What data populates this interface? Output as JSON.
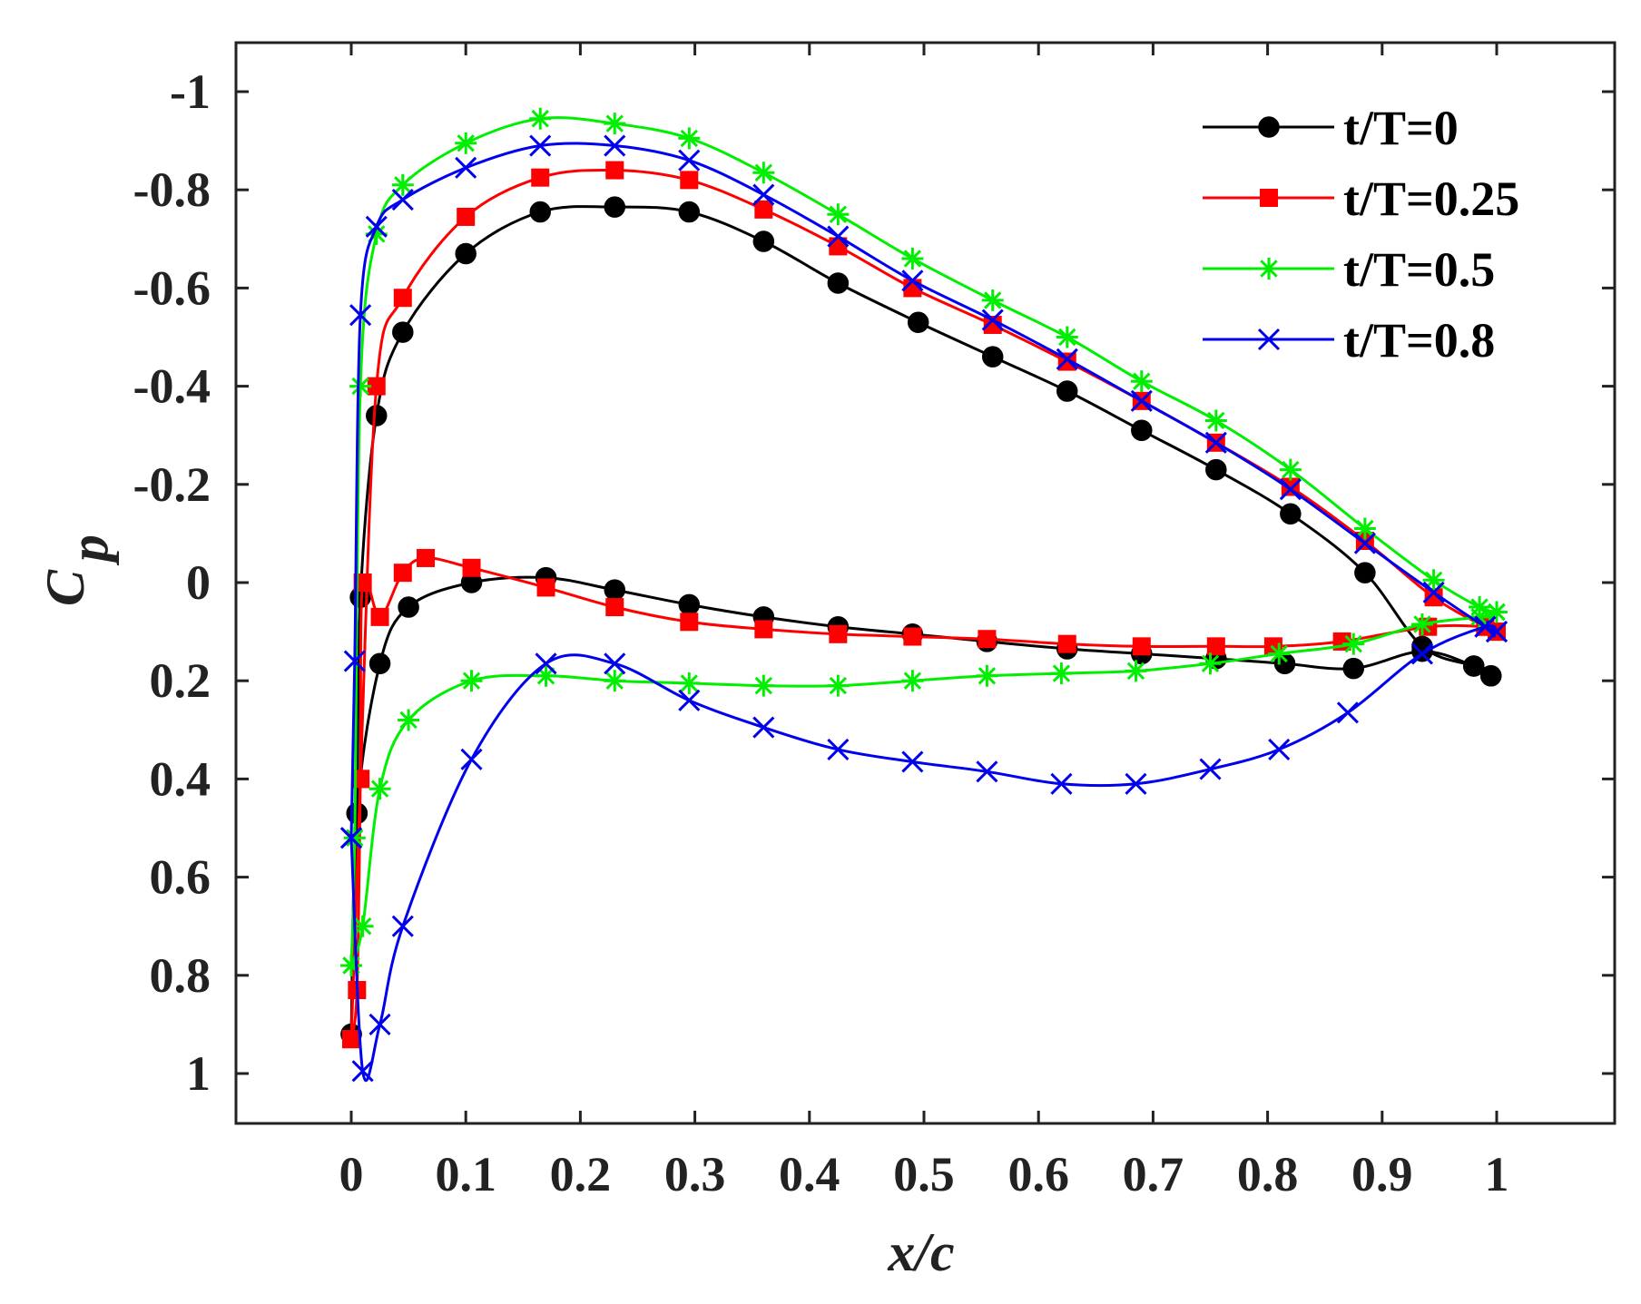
{
  "chart_data": {
    "type": "line",
    "title": "",
    "xlabel": "x/c",
    "ylabel_main": "C",
    "ylabel_sub": "p",
    "xlim": [
      -0.1,
      1.1
    ],
    "ylim": [
      -1.1,
      1.1
    ],
    "y_reversed": true,
    "grid": false,
    "legend_position": "top-right",
    "x_ticks": [
      0,
      0.1,
      0.2,
      0.3,
      0.4,
      0.5,
      0.6,
      0.7,
      0.8,
      0.9,
      1
    ],
    "x_tick_labels": [
      "0",
      "0.1",
      "0.2",
      "0.3",
      "0.4",
      "0.5",
      "0.6",
      "0.7",
      "0.8",
      "0.9",
      "1"
    ],
    "y_ticks": [
      -1,
      -0.8,
      -0.6,
      -0.4,
      -0.2,
      0,
      0.2,
      0.4,
      0.6,
      0.8,
      1
    ],
    "y_tick_labels": [
      "-1",
      "-0.8",
      "-0.6",
      "-0.4",
      "-0.2",
      "0",
      "0.2",
      "0.4",
      "0.6",
      "0.8",
      "1"
    ],
    "series": [
      {
        "name": "t/T=0",
        "label": "t/T=0",
        "color": "#000000",
        "marker": "circle",
        "upper": [
          [
            0.0,
            0.92
          ],
          [
            0.005,
            0.47
          ],
          [
            0.008,
            0.03
          ],
          [
            0.022,
            -0.34
          ],
          [
            0.045,
            -0.51
          ],
          [
            0.1,
            -0.67
          ],
          [
            0.165,
            -0.755
          ],
          [
            0.23,
            -0.765
          ],
          [
            0.295,
            -0.755
          ],
          [
            0.36,
            -0.695
          ],
          [
            0.425,
            -0.61
          ],
          [
            0.495,
            -0.53
          ],
          [
            0.56,
            -0.46
          ],
          [
            0.625,
            -0.39
          ],
          [
            0.69,
            -0.31
          ],
          [
            0.755,
            -0.23
          ],
          [
            0.82,
            -0.14
          ],
          [
            0.885,
            -0.02
          ],
          [
            0.935,
            0.13
          ],
          [
            0.98,
            0.17
          ],
          [
            0.995,
            0.19
          ]
        ],
        "lower": [
          [
            0.0,
            0.92
          ],
          [
            0.005,
            0.47
          ],
          [
            0.025,
            0.165
          ],
          [
            0.05,
            0.05
          ],
          [
            0.105,
            0.0
          ],
          [
            0.17,
            -0.01
          ],
          [
            0.23,
            0.015
          ],
          [
            0.295,
            0.045
          ],
          [
            0.36,
            0.07
          ],
          [
            0.425,
            0.09
          ],
          [
            0.49,
            0.105
          ],
          [
            0.555,
            0.12
          ],
          [
            0.625,
            0.135
          ],
          [
            0.69,
            0.145
          ],
          [
            0.755,
            0.155
          ],
          [
            0.815,
            0.165
          ],
          [
            0.875,
            0.175
          ],
          [
            0.935,
            0.14
          ],
          [
            0.98,
            0.17
          ],
          [
            0.995,
            0.19
          ]
        ]
      },
      {
        "name": "t/T=0.25",
        "label": "t/T=0.25",
        "color": "#ff0000",
        "marker": "square",
        "upper": [
          [
            0.0,
            0.93
          ],
          [
            0.008,
            0.4
          ],
          [
            0.022,
            -0.4
          ],
          [
            0.045,
            -0.58
          ],
          [
            0.1,
            -0.745
          ],
          [
            0.165,
            -0.825
          ],
          [
            0.23,
            -0.84
          ],
          [
            0.295,
            -0.82
          ],
          [
            0.36,
            -0.76
          ],
          [
            0.425,
            -0.685
          ],
          [
            0.49,
            -0.6
          ],
          [
            0.56,
            -0.525
          ],
          [
            0.625,
            -0.45
          ],
          [
            0.69,
            -0.37
          ],
          [
            0.755,
            -0.285
          ],
          [
            0.82,
            -0.195
          ],
          [
            0.885,
            -0.085
          ],
          [
            0.945,
            0.03
          ],
          [
            0.99,
            0.09
          ],
          [
            1.0,
            0.1
          ]
        ],
        "lower": [
          [
            0.0,
            0.93
          ],
          [
            0.005,
            0.83
          ],
          [
            0.008,
            0.4
          ],
          [
            0.01,
            0.0
          ],
          [
            0.025,
            0.07
          ],
          [
            0.045,
            -0.02
          ],
          [
            0.065,
            -0.05
          ],
          [
            0.105,
            -0.03
          ],
          [
            0.17,
            0.01
          ],
          [
            0.23,
            0.05
          ],
          [
            0.295,
            0.08
          ],
          [
            0.36,
            0.095
          ],
          [
            0.425,
            0.105
          ],
          [
            0.49,
            0.11
          ],
          [
            0.555,
            0.115
          ],
          [
            0.625,
            0.125
          ],
          [
            0.69,
            0.13
          ],
          [
            0.755,
            0.13
          ],
          [
            0.805,
            0.13
          ],
          [
            0.865,
            0.12
          ],
          [
            0.94,
            0.09
          ],
          [
            0.99,
            0.09
          ],
          [
            1.0,
            0.1
          ]
        ]
      },
      {
        "name": "t/T=0.5",
        "label": "t/T=0.5",
        "color": "#00ee00",
        "marker": "asterisk",
        "upper": [
          [
            0.0,
            0.78
          ],
          [
            0.003,
            0.52
          ],
          [
            0.008,
            -0.4
          ],
          [
            0.022,
            -0.71
          ],
          [
            0.045,
            -0.81
          ],
          [
            0.1,
            -0.895
          ],
          [
            0.165,
            -0.945
          ],
          [
            0.23,
            -0.935
          ],
          [
            0.295,
            -0.905
          ],
          [
            0.36,
            -0.835
          ],
          [
            0.425,
            -0.75
          ],
          [
            0.49,
            -0.66
          ],
          [
            0.56,
            -0.575
          ],
          [
            0.625,
            -0.5
          ],
          [
            0.69,
            -0.41
          ],
          [
            0.755,
            -0.33
          ],
          [
            0.82,
            -0.23
          ],
          [
            0.885,
            -0.11
          ],
          [
            0.945,
            -0.005
          ],
          [
            0.985,
            0.05
          ],
          [
            1.0,
            0.06
          ]
        ],
        "lower": [
          [
            0.0,
            0.78
          ],
          [
            0.01,
            0.7
          ],
          [
            0.025,
            0.42
          ],
          [
            0.05,
            0.28
          ],
          [
            0.105,
            0.2
          ],
          [
            0.17,
            0.19
          ],
          [
            0.23,
            0.2
          ],
          [
            0.295,
            0.205
          ],
          [
            0.36,
            0.21
          ],
          [
            0.425,
            0.21
          ],
          [
            0.49,
            0.2
          ],
          [
            0.555,
            0.19
          ],
          [
            0.62,
            0.185
          ],
          [
            0.685,
            0.18
          ],
          [
            0.75,
            0.165
          ],
          [
            0.81,
            0.145
          ],
          [
            0.875,
            0.125
          ],
          [
            0.935,
            0.085
          ],
          [
            0.985,
            0.07
          ],
          [
            1.0,
            0.06
          ]
        ]
      },
      {
        "name": "t/T=0.8",
        "label": "t/T=0.8",
        "color": "#0000ee",
        "marker": "cross",
        "upper": [
          [
            0.0,
            0.52
          ],
          [
            0.003,
            0.16
          ],
          [
            0.008,
            -0.545
          ],
          [
            0.022,
            -0.725
          ],
          [
            0.045,
            -0.78
          ],
          [
            0.1,
            -0.845
          ],
          [
            0.165,
            -0.89
          ],
          [
            0.23,
            -0.89
          ],
          [
            0.295,
            -0.86
          ],
          [
            0.36,
            -0.79
          ],
          [
            0.425,
            -0.705
          ],
          [
            0.49,
            -0.615
          ],
          [
            0.56,
            -0.535
          ],
          [
            0.625,
            -0.455
          ],
          [
            0.69,
            -0.37
          ],
          [
            0.755,
            -0.285
          ],
          [
            0.82,
            -0.19
          ],
          [
            0.885,
            -0.08
          ],
          [
            0.945,
            0.02
          ],
          [
            0.99,
            0.09
          ],
          [
            1.0,
            0.1
          ]
        ],
        "lower": [
          [
            0.0,
            0.52
          ],
          [
            0.01,
            0.995
          ],
          [
            0.025,
            0.9
          ],
          [
            0.045,
            0.7
          ],
          [
            0.105,
            0.36
          ],
          [
            0.17,
            0.165
          ],
          [
            0.23,
            0.165
          ],
          [
            0.295,
            0.24
          ],
          [
            0.36,
            0.295
          ],
          [
            0.425,
            0.34
          ],
          [
            0.49,
            0.365
          ],
          [
            0.555,
            0.385
          ],
          [
            0.62,
            0.41
          ],
          [
            0.685,
            0.41
          ],
          [
            0.75,
            0.38
          ],
          [
            0.81,
            0.34
          ],
          [
            0.87,
            0.265
          ],
          [
            0.935,
            0.145
          ],
          [
            0.99,
            0.09
          ],
          [
            1.0,
            0.1
          ]
        ]
      }
    ]
  }
}
